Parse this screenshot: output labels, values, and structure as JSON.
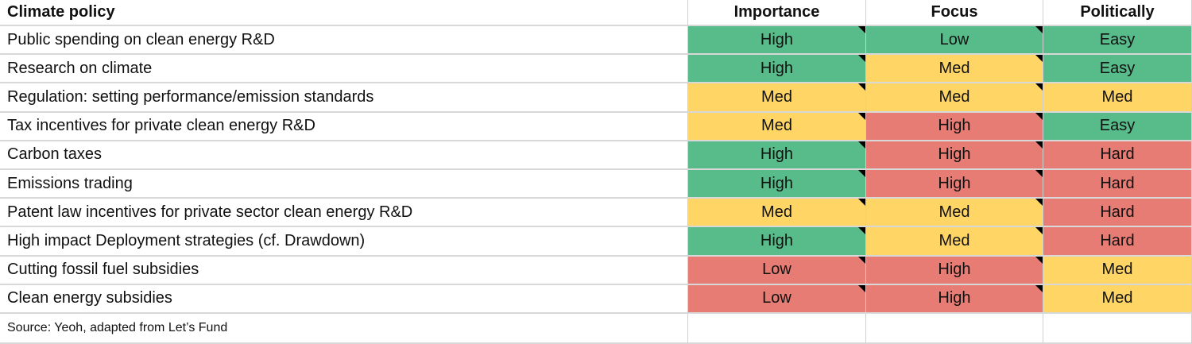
{
  "header": [
    "Climate policy",
    "Importance",
    "Focus",
    "Politically"
  ],
  "rows": [
    {
      "policy": "Public spending on clean energy R&D",
      "cells": [
        {
          "text": "High",
          "color": "#57bb8a"
        },
        {
          "text": "Low",
          "color": "#57bb8a"
        },
        {
          "text": "Easy",
          "color": "#57bb8a"
        }
      ]
    },
    {
      "policy": "Research on climate",
      "cells": [
        {
          "text": "High",
          "color": "#57bb8a"
        },
        {
          "text": "Med",
          "color": "#ffd666"
        },
        {
          "text": "Easy",
          "color": "#57bb8a"
        }
      ]
    },
    {
      "policy": "Regulation: setting performance/emission standards",
      "cells": [
        {
          "text": "Med",
          "color": "#ffd666"
        },
        {
          "text": "Med",
          "color": "#ffd666"
        },
        {
          "text": "Med",
          "color": "#ffd666"
        }
      ]
    },
    {
      "policy": "Tax incentives for private clean energy R&D",
      "cells": [
        {
          "text": "Med",
          "color": "#ffd666"
        },
        {
          "text": "High",
          "color": "#e67c73"
        },
        {
          "text": "Easy",
          "color": "#57bb8a"
        }
      ]
    },
    {
      "policy": "Carbon taxes",
      "cells": [
        {
          "text": "High",
          "color": "#57bb8a"
        },
        {
          "text": "High",
          "color": "#e67c73"
        },
        {
          "text": "Hard",
          "color": "#e67c73"
        }
      ]
    },
    {
      "policy": "Emissions trading",
      "cells": [
        {
          "text": "High",
          "color": "#57bb8a"
        },
        {
          "text": "High",
          "color": "#e67c73"
        },
        {
          "text": "Hard",
          "color": "#e67c73"
        }
      ]
    },
    {
      "policy": "Patent law incentives for private sector clean energy R&D",
      "cells": [
        {
          "text": "Med",
          "color": "#ffd666"
        },
        {
          "text": "Med",
          "color": "#ffd666"
        },
        {
          "text": "Hard",
          "color": "#e67c73"
        }
      ]
    },
    {
      "policy": "High impact Deployment strategies (cf. Drawdown)",
      "cells": [
        {
          "text": "High",
          "color": "#57bb8a"
        },
        {
          "text": "Med",
          "color": "#ffd666"
        },
        {
          "text": "Hard",
          "color": "#e67c73"
        }
      ]
    },
    {
      "policy": "Cutting fossil fuel subsidies",
      "cells": [
        {
          "text": "Low",
          "color": "#e67c73"
        },
        {
          "text": "High",
          "color": "#e67c73"
        },
        {
          "text": "Med",
          "color": "#ffd666"
        }
      ]
    },
    {
      "policy": "Clean energy subsidies",
      "cells": [
        {
          "text": "Low",
          "color": "#e67c73"
        },
        {
          "text": "High",
          "color": "#e67c73"
        },
        {
          "text": "Med",
          "color": "#ffd666"
        }
      ]
    }
  ],
  "source": "Source: Yeoh, adapted from Let’s Fund"
}
